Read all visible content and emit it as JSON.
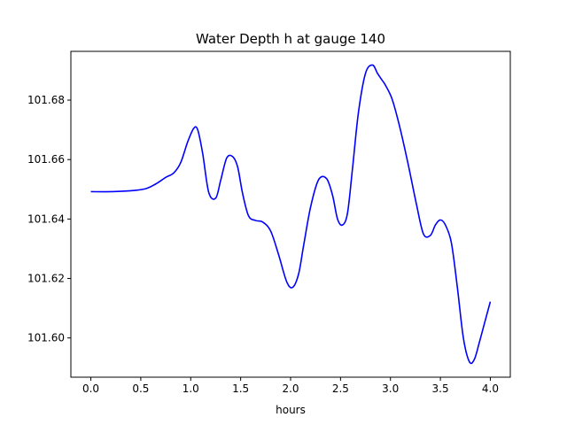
{
  "chart_data": {
    "type": "line",
    "title": "Water Depth h at gauge 140",
    "xlabel": "hours",
    "ylabel": "",
    "xlim": [
      -0.2,
      4.2
    ],
    "ylim": [
      101.5868,
      101.6964
    ],
    "xticks": [
      0.0,
      0.5,
      1.0,
      1.5,
      2.0,
      2.5,
      3.0,
      3.5,
      4.0
    ],
    "xtick_labels": [
      "0.0",
      "0.5",
      "1.0",
      "1.5",
      "2.0",
      "2.5",
      "3.0",
      "3.5",
      "4.0"
    ],
    "yticks": [
      101.6,
      101.62,
      101.64,
      101.66,
      101.68
    ],
    "ytick_labels": [
      "101.60",
      "101.62",
      "101.64",
      "101.66",
      "101.68"
    ],
    "grid": false,
    "series": [
      {
        "color": "#0000ff",
        "x": [
          0.0,
          0.2,
          0.4,
          0.55,
          0.65,
          0.75,
          0.83,
          0.9,
          0.97,
          1.03,
          1.07,
          1.12,
          1.18,
          1.25,
          1.3,
          1.36,
          1.42,
          1.47,
          1.52,
          1.58,
          1.65,
          1.72,
          1.8,
          1.88,
          1.96,
          2.02,
          2.08,
          2.13,
          2.2,
          2.28,
          2.36,
          2.42,
          2.47,
          2.52,
          2.57,
          2.62,
          2.68,
          2.75,
          2.82,
          2.87,
          2.91,
          2.95,
          3.02,
          3.1,
          3.18,
          3.26,
          3.33,
          3.4,
          3.45,
          3.5,
          3.55,
          3.61,
          3.67,
          3.73,
          3.79,
          3.84,
          3.89,
          3.95,
          4.0
        ],
        "y": [
          101.6492,
          101.6492,
          101.6495,
          101.6502,
          101.6518,
          101.654,
          101.6555,
          101.659,
          101.666,
          101.6705,
          101.67,
          101.662,
          101.649,
          101.647,
          101.653,
          101.6605,
          101.661,
          101.6575,
          101.6485,
          101.641,
          101.6395,
          101.639,
          101.636,
          101.628,
          101.619,
          101.617,
          101.6215,
          101.631,
          101.644,
          101.6532,
          101.6536,
          101.648,
          101.64,
          101.638,
          101.642,
          101.657,
          101.676,
          101.689,
          101.6918,
          101.689,
          101.687,
          101.685,
          101.68,
          101.67,
          101.658,
          101.645,
          101.635,
          101.6345,
          101.638,
          101.6397,
          101.638,
          101.632,
          101.617,
          101.6,
          101.592,
          101.5928,
          101.5985,
          101.606,
          101.6122
        ]
      }
    ]
  }
}
